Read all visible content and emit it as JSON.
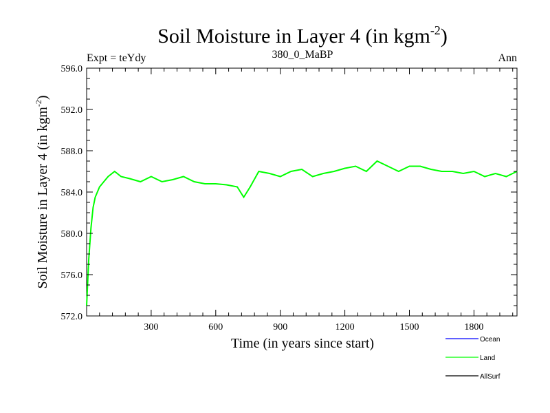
{
  "chart_data": {
    "type": "line",
    "title": "Soil Moisture in Layer 4 (in kgm",
    "title_superscript": "-2",
    "title_suffix": ")",
    "subtitle_left": "Expt = teYdy",
    "subtitle_center": "380_0_MaBP",
    "subtitle_right": "Ann",
    "xlabel": "Time (in years since start)",
    "ylabel": "Soil Moisture in Layer 4 (in kgm",
    "ylabel_superscript": "-2",
    "ylabel_suffix": ")",
    "xlim": [
      0,
      2000
    ],
    "ylim": [
      572.0,
      596.0
    ],
    "x_ticks": [
      300,
      600,
      900,
      1200,
      1500,
      1800
    ],
    "x_tick_labels": [
      "300",
      "600",
      "900",
      "1200",
      "1500",
      "1800"
    ],
    "y_ticks": [
      572.0,
      576.0,
      580.0,
      584.0,
      588.0,
      592.0,
      596.0
    ],
    "y_tick_labels": [
      "572.0",
      "576.0",
      "580.0",
      "584.0",
      "588.0",
      "592.0",
      "596.0"
    ],
    "grid": false,
    "legend_position": "bottom-right",
    "series": [
      {
        "name": "Ocean",
        "color": "#0000ff",
        "values": []
      },
      {
        "name": "Land",
        "color": "#00ff00",
        "x": [
          0,
          10,
          20,
          30,
          40,
          60,
          80,
          100,
          130,
          160,
          200,
          250,
          300,
          350,
          400,
          450,
          500,
          550,
          600,
          650,
          700,
          730,
          760,
          800,
          850,
          900,
          950,
          1000,
          1050,
          1100,
          1150,
          1200,
          1250,
          1300,
          1350,
          1400,
          1450,
          1500,
          1550,
          1600,
          1650,
          1700,
          1750,
          1800,
          1850,
          1900,
          1950,
          2000
        ],
        "values": [
          573.0,
          577.5,
          580.5,
          582.5,
          583.5,
          584.5,
          585.0,
          585.5,
          586.0,
          585.5,
          585.3,
          585.0,
          585.5,
          585.0,
          585.2,
          585.5,
          585.0,
          584.8,
          584.8,
          584.7,
          584.5,
          583.5,
          584.5,
          586.0,
          585.8,
          585.5,
          586.0,
          586.2,
          585.5,
          585.8,
          586.0,
          586.3,
          586.5,
          586.0,
          587.0,
          586.5,
          586.0,
          586.5,
          586.5,
          586.2,
          586.0,
          586.0,
          585.8,
          586.0,
          585.5,
          585.8,
          585.5,
          586.0
        ]
      },
      {
        "name": "AllSurf",
        "color": "#000000",
        "values": []
      }
    ]
  }
}
